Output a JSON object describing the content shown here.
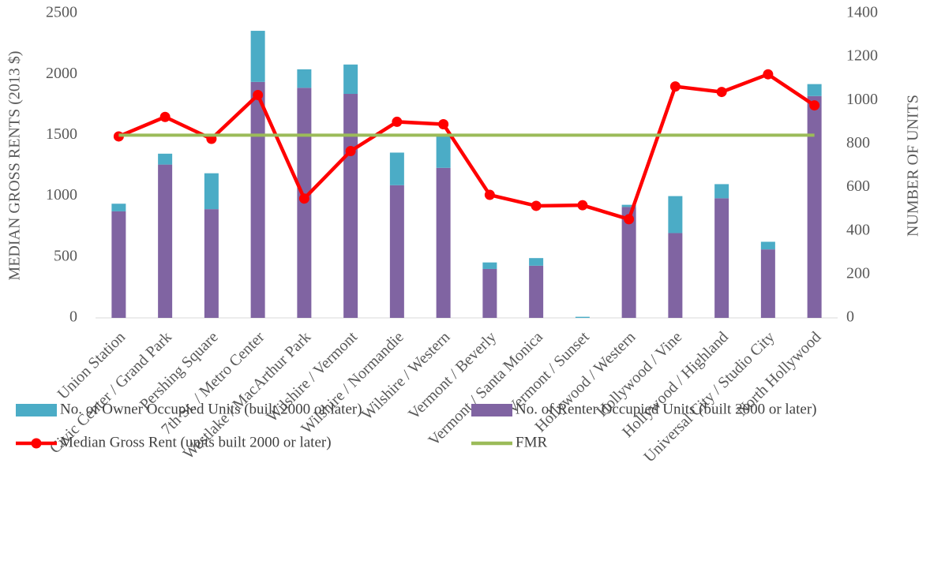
{
  "chart_data": {
    "type": "bar-line",
    "y_axis_label": "MEDIAN GROSS RENTS (2013 $)",
    "y2_axis_label": "NUMBER OF UNITS",
    "categories": [
      "Union Station",
      "Civic Center / Grand Park",
      "Pershing Square",
      "7th St. / Metro Center",
      "Westlake / MacArthur Park",
      "Wilshire / Vermont",
      "Wilshire / Normandie",
      "Wilshire / Western",
      "Vermont / Beverly",
      "Vermont / Santa Monica",
      "Vermont / Sunset",
      "Hollywood / Western",
      "Hollywood / Vine",
      "Hollywood / Highland",
      "Universal City / Studio City",
      "North Hollywood"
    ],
    "series": [
      {
        "name": "No. of Owner Occupied Units (built 2000 or later)",
        "type": "bar",
        "axis": "y2",
        "color": "#4bacc6",
        "values": [
          35,
          50,
          165,
          235,
          85,
          135,
          150,
          150,
          30,
          35,
          5,
          10,
          170,
          65,
          35,
          55
        ]
      },
      {
        "name": "No. of Renter Occupied Units (built 2000 or later)",
        "type": "bar",
        "axis": "y2",
        "color": "#8064a2",
        "values": [
          490,
          705,
          500,
          1085,
          1058,
          1030,
          610,
          690,
          225,
          240,
          0,
          510,
          390,
          550,
          315,
          1020
        ]
      },
      {
        "name": "Median Gross Rent (units built 2000 or later)",
        "type": "line",
        "markers": true,
        "color": "#ff0000",
        "values": [
          1490,
          1650,
          1470,
          1830,
          980,
          1370,
          1610,
          1590,
          1010,
          920,
          925,
          810,
          1900,
          1855,
          2000,
          1745
        ]
      },
      {
        "name": "FMR",
        "type": "line",
        "markers": false,
        "color": "#9bbb59",
        "values": [
          1500,
          1500,
          1500,
          1500,
          1500,
          1500,
          1500,
          1500,
          1500,
          1500,
          1500,
          1500,
          1500,
          1500,
          1500,
          1500
        ]
      }
    ],
    "ylim": [
      0,
      2500
    ],
    "yticks": [
      0,
      500,
      1000,
      1500,
      2000,
      2500
    ],
    "y2lim": [
      0,
      1400
    ],
    "y2ticks": [
      0,
      200,
      400,
      600,
      800,
      1000,
      1200,
      1400
    ],
    "grid": false
  }
}
